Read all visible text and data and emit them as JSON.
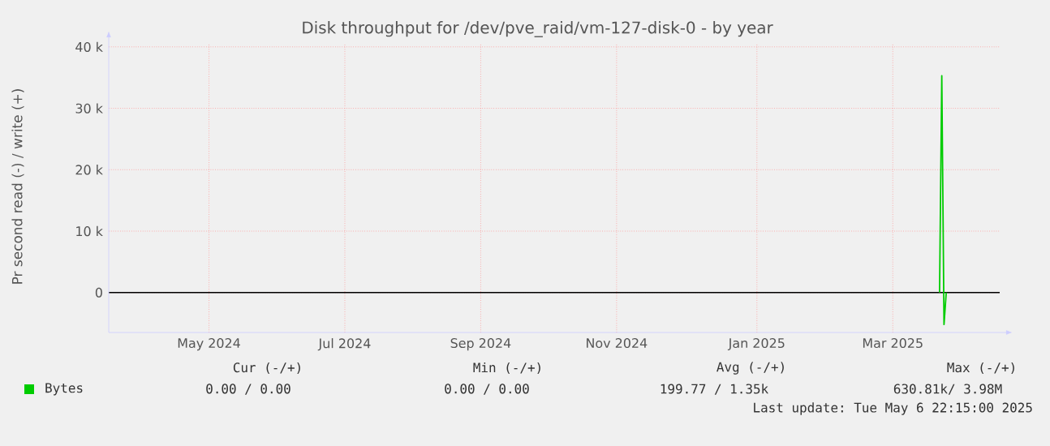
{
  "chart_data": {
    "type": "line",
    "title": "Disk throughput for /dev/pve_raid/vm-127-disk-0 - by year",
    "ylabel": "Pr second read (-) / write (+)",
    "xlim": [
      "2024-04-01",
      "2025-05-06"
    ],
    "xticks": [
      {
        "value": "2024-05-16",
        "label": "May 2024"
      },
      {
        "value": "2024-07-16",
        "label": "Jul 2024"
      },
      {
        "value": "2024-09-15",
        "label": "Sep 2024"
      },
      {
        "value": "2024-11-15",
        "label": "Nov 2024"
      },
      {
        "value": "2025-01-17",
        "label": "Jan 2025"
      },
      {
        "value": "2025-03-19",
        "label": "Mar 2025"
      }
    ],
    "ylim": [
      -6500,
      40500
    ],
    "yticks": [
      0,
      {
        "value": 10000,
        "label": "10 k"
      },
      {
        "value": 20000,
        "label": "20 k"
      },
      {
        "value": 30000,
        "label": "30 k"
      },
      {
        "value": 40000,
        "label": "40 k"
      }
    ],
    "series": [
      {
        "name": "Bytes",
        "color": "#00cc00",
        "x": [
          "2025-04-09",
          "2025-04-10",
          "2025-04-11",
          "2025-04-12"
        ],
        "values": [
          0,
          35300,
          -5200,
          0
        ]
      }
    ],
    "ref_lines": [
      {
        "axis": "y",
        "value": 0,
        "color": "#000000"
      }
    ],
    "grid": true,
    "legend": "bottom",
    "marker": "none",
    "annotations": [
      "Cur (-/+)",
      "Min (-/+)",
      "Avg (-/+)",
      "Max (-/+)",
      "0.00 / 0.00",
      "0.00 / 0.00",
      "199.77 / 1.35k",
      "630.81k/ 3.98M",
      "Last update: Tue May 6 22:15:00 2025"
    ]
  }
}
